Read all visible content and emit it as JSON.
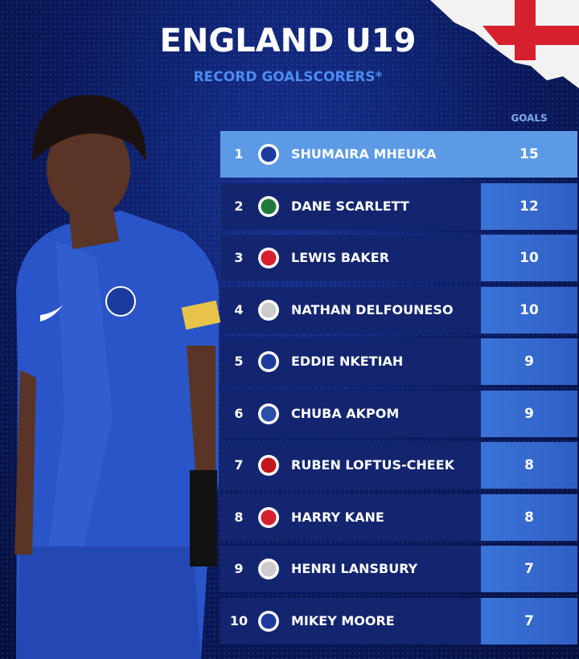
{
  "header": {
    "title": "ENGLAND U19",
    "subtitle": "RECORD GOALSCORERS*"
  },
  "table": {
    "column_header": "GOALS",
    "rows": [
      {
        "rank": 1,
        "name": "SHUMAIRA MHEUKA",
        "goals": 15
      },
      {
        "rank": 2,
        "name": "DANE SCARLETT",
        "goals": 12
      },
      {
        "rank": 3,
        "name": "LEWIS BAKER",
        "goals": 10
      },
      {
        "rank": 4,
        "name": "NATHAN DELFOUNESO",
        "goals": 10
      },
      {
        "rank": 5,
        "name": "EDDIE NKETIAH",
        "goals": 9
      },
      {
        "rank": 6,
        "name": "CHUBA AKPOM",
        "goals": 9
      },
      {
        "rank": 7,
        "name": "RUBEN LOFTUS-CHEEK",
        "goals": 8
      },
      {
        "rank": 8,
        "name": "HARRY KANE",
        "goals": 8
      },
      {
        "rank": 9,
        "name": "HENRI LANSBURY",
        "goals": 7
      },
      {
        "rank": 10,
        "name": "MIKEY MOORE",
        "goals": 7
      }
    ]
  }
}
